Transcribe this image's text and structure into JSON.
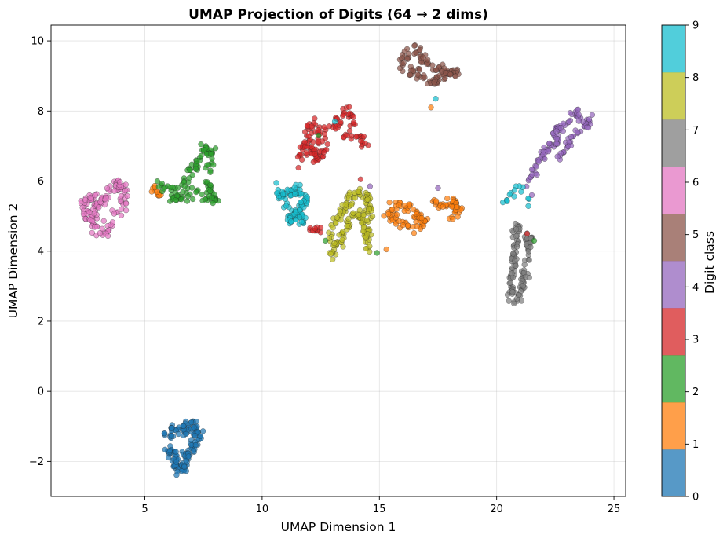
{
  "chart_data": {
    "type": "scatter",
    "title": "UMAP Projection of Digits (64 → 2 dims)",
    "xlabel": "UMAP Dimension 1",
    "ylabel": "UMAP Dimension 2",
    "xlim": [
      1.0,
      25.5
    ],
    "ylim": [
      -3.0,
      10.45
    ],
    "xticks": [
      5,
      10,
      15,
      20,
      25
    ],
    "yticks": [
      -2,
      0,
      2,
      4,
      6,
      8,
      10
    ],
    "xtick_labels": [
      "5",
      "10",
      "15",
      "20",
      "25"
    ],
    "ytick_labels": [
      "−2",
      "0",
      "2",
      "4",
      "6",
      "8",
      "10"
    ],
    "grid": true,
    "colorbar": {
      "label": "Digit class",
      "ticks": [
        "0",
        "1",
        "2",
        "3",
        "4",
        "5",
        "6",
        "7",
        "8",
        "9"
      ],
      "colors": [
        "#1f77b4",
        "#ff7f0e",
        "#2ca02c",
        "#d62728",
        "#9467bd",
        "#8c564b",
        "#e377c2",
        "#7f7f7f",
        "#bcbd22",
        "#17becf"
      ]
    },
    "clusters": [
      {
        "digit": 0,
        "color": "#1f77b4",
        "anchors": [
          [
            5.9,
            -1.3
          ],
          [
            6.4,
            -1.05
          ],
          [
            7.0,
            -1.05
          ],
          [
            7.3,
            -1.2
          ],
          [
            7.0,
            -1.6
          ],
          [
            6.7,
            -2.0
          ],
          [
            6.5,
            -2.3
          ],
          [
            6.2,
            -1.9
          ],
          [
            6.0,
            -1.6
          ]
        ],
        "n": 150,
        "spread": 0.12
      },
      {
        "digit": 1,
        "color": "#ff7f0e",
        "anchors": [
          [
            5.3,
            5.82
          ],
          [
            5.7,
            5.6
          ]
        ],
        "n": 12,
        "spread": 0.06
      },
      {
        "digit": 1,
        "color": "#ff7f0e",
        "anchors": [
          [
            15.3,
            5.05
          ],
          [
            15.6,
            5.3
          ],
          [
            16.1,
            5.35
          ],
          [
            16.6,
            5.1
          ],
          [
            16.9,
            4.8
          ],
          [
            16.4,
            4.7
          ],
          [
            15.9,
            4.8
          ],
          [
            15.5,
            5.0
          ]
        ],
        "n": 70,
        "spread": 0.09
      },
      {
        "digit": 1,
        "color": "#ff7f0e",
        "anchors": [
          [
            17.3,
            5.4
          ],
          [
            17.8,
            5.25
          ],
          [
            18.2,
            5.45
          ],
          [
            18.4,
            5.1
          ],
          [
            18.0,
            4.95
          ]
        ],
        "n": 45,
        "spread": 0.08
      },
      {
        "digit": 2,
        "color": "#2ca02c",
        "anchors": [
          [
            5.6,
            5.9
          ],
          [
            6.4,
            5.75
          ],
          [
            6.9,
            6.2
          ],
          [
            7.2,
            6.5
          ],
          [
            7.6,
            6.95
          ],
          [
            7.9,
            6.7
          ],
          [
            7.6,
            6.1
          ],
          [
            7.8,
            5.6
          ],
          [
            8.1,
            5.4
          ],
          [
            7.2,
            5.7
          ],
          [
            6.7,
            5.55
          ],
          [
            6.0,
            5.55
          ]
        ],
        "n": 130,
        "spread": 0.1
      },
      {
        "digit": 3,
        "color": "#d62728",
        "anchors": [
          [
            11.7,
            6.55
          ],
          [
            11.8,
            7.1
          ],
          [
            12.1,
            7.55
          ],
          [
            12.5,
            7.45
          ],
          [
            12.6,
            7.1
          ],
          [
            12.5,
            6.6
          ],
          [
            12.0,
            6.9
          ],
          [
            12.3,
            6.85
          ]
        ],
        "n": 75,
        "spread": 0.13
      },
      {
        "digit": 3,
        "color": "#d62728",
        "anchors": [
          [
            13.0,
            7.55
          ],
          [
            13.4,
            7.8
          ],
          [
            13.8,
            8.0
          ],
          [
            14.0,
            7.6
          ],
          [
            13.6,
            7.3
          ],
          [
            14.3,
            7.2
          ],
          [
            14.4,
            7.0
          ]
        ],
        "n": 50,
        "spread": 0.1
      },
      {
        "digit": 3,
        "color": "#d62728",
        "anchors": [
          [
            12.1,
            4.6
          ],
          [
            12.5,
            4.6
          ]
        ],
        "n": 10,
        "spread": 0.05
      },
      {
        "digit": 4,
        "color": "#9467bd",
        "anchors": [
          [
            21.2,
            5.8
          ],
          [
            21.6,
            6.3
          ],
          [
            22.0,
            6.8
          ],
          [
            22.5,
            7.1
          ],
          [
            22.6,
            7.5
          ],
          [
            23.0,
            7.7
          ],
          [
            23.4,
            8.0
          ],
          [
            23.7,
            7.6
          ],
          [
            24.1,
            7.7
          ],
          [
            23.3,
            7.3
          ],
          [
            22.9,
            6.9
          ],
          [
            22.6,
            6.6
          ]
        ],
        "n": 110,
        "spread": 0.08
      },
      {
        "digit": 5,
        "color": "#8c564b",
        "anchors": [
          [
            15.8,
            9.3
          ],
          [
            16.2,
            9.6
          ],
          [
            16.6,
            9.75
          ],
          [
            17.0,
            9.4
          ],
          [
            17.4,
            9.2
          ],
          [
            17.9,
            9.1
          ],
          [
            18.3,
            9.05
          ],
          [
            17.6,
            8.95
          ],
          [
            17.2,
            8.8
          ],
          [
            16.7,
            9.05
          ],
          [
            16.3,
            9.1
          ]
        ],
        "n": 110,
        "spread": 0.09
      },
      {
        "digit": 6,
        "color": "#e377c2",
        "anchors": [
          [
            2.3,
            5.4
          ],
          [
            2.7,
            5.5
          ],
          [
            3.0,
            5.25
          ],
          [
            3.3,
            5.6
          ],
          [
            3.6,
            5.75
          ],
          [
            4.0,
            5.95
          ],
          [
            4.1,
            5.5
          ],
          [
            3.7,
            5.0
          ],
          [
            3.4,
            4.7
          ],
          [
            3.0,
            4.5
          ],
          [
            2.7,
            5.05
          ],
          [
            2.4,
            5.15
          ]
        ],
        "n": 130,
        "spread": 0.12
      },
      {
        "digit": 7,
        "color": "#7f7f7f",
        "anchors": [
          [
            21.0,
            4.8
          ],
          [
            20.8,
            4.4
          ],
          [
            20.7,
            3.95
          ],
          [
            20.8,
            3.6
          ],
          [
            20.6,
            3.2
          ],
          [
            20.6,
            2.9
          ],
          [
            20.8,
            2.5
          ],
          [
            21.1,
            3.0
          ],
          [
            21.2,
            3.4
          ],
          [
            21.4,
            4.4
          ],
          [
            21.2,
            4.2
          ]
        ],
        "n": 120,
        "spread": 0.08
      },
      {
        "digit": 8,
        "color": "#bcbd22",
        "anchors": [
          [
            12.8,
            4.4
          ],
          [
            13.1,
            4.8
          ],
          [
            13.4,
            5.1
          ],
          [
            13.7,
            5.5
          ],
          [
            14.1,
            5.7
          ],
          [
            14.5,
            5.5
          ],
          [
            14.6,
            5.0
          ],
          [
            14.4,
            4.6
          ],
          [
            14.5,
            4.1
          ],
          [
            14.2,
            5.1
          ],
          [
            13.6,
            4.7
          ],
          [
            13.0,
            4.0
          ],
          [
            13.3,
            4.2
          ]
        ],
        "n": 150,
        "spread": 0.1
      },
      {
        "digit": 9,
        "color": "#17becf",
        "anchors": [
          [
            10.6,
            5.8
          ],
          [
            10.9,
            5.55
          ],
          [
            11.2,
            5.65
          ],
          [
            11.6,
            5.75
          ],
          [
            11.9,
            5.45
          ],
          [
            11.5,
            5.1
          ],
          [
            11.1,
            4.95
          ],
          [
            11.8,
            4.9
          ],
          [
            10.8,
            5.3
          ]
        ],
        "n": 110,
        "spread": 0.1
      },
      {
        "digit": 9,
        "color": "#17becf",
        "anchors": [
          [
            20.3,
            5.4
          ],
          [
            20.7,
            5.65
          ],
          [
            21.0,
            5.95
          ],
          [
            21.4,
            5.3
          ]
        ],
        "n": 15,
        "spread": 0.06
      }
    ],
    "outliers": [
      {
        "x": 17.4,
        "y": 8.35,
        "digit": 9
      },
      {
        "x": 17.2,
        "y": 8.1,
        "digit": 1
      },
      {
        "x": 15.3,
        "y": 4.05,
        "digit": 1
      },
      {
        "x": 13.1,
        "y": 7.7,
        "digit": 9
      },
      {
        "x": 21.3,
        "y": 4.5,
        "digit": 3
      },
      {
        "x": 21.6,
        "y": 4.3,
        "digit": 2
      },
      {
        "x": 14.9,
        "y": 3.95,
        "digit": 2
      },
      {
        "x": 12.7,
        "y": 4.3,
        "digit": 2
      },
      {
        "x": 14.6,
        "y": 5.85,
        "digit": 4
      },
      {
        "x": 17.5,
        "y": 5.8,
        "digit": 4
      },
      {
        "x": 21.5,
        "y": 5.6,
        "digit": 4
      },
      {
        "x": 12.4,
        "y": 7.3,
        "digit": 2
      },
      {
        "x": 14.2,
        "y": 6.05,
        "digit": 3
      }
    ]
  }
}
